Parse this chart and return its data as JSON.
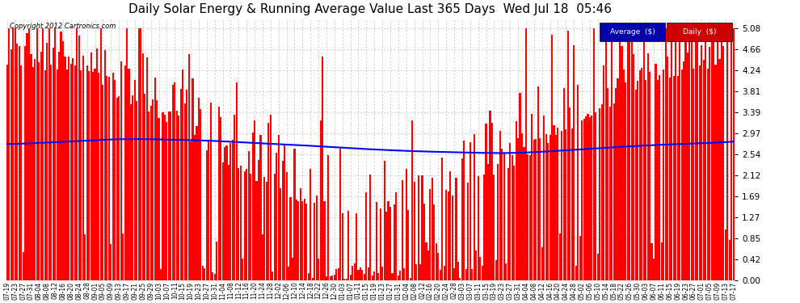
{
  "title": "Daily Solar Energy & Running Average Value Last 365 Days  Wed Jul 18  05:46",
  "copyright": "Copyright 2012 Cartronics.com",
  "legend_labels": [
    "Average  ($)",
    "Daily  ($)"
  ],
  "bar_color": "#ff0000",
  "line_color": "#0000ff",
  "background_color": "#ffffff",
  "grid_color": "#bbbbbb",
  "yticks": [
    0.0,
    0.42,
    0.85,
    1.27,
    1.69,
    2.12,
    2.54,
    2.97,
    3.39,
    3.81,
    4.24,
    4.66,
    5.08
  ],
  "ylim": [
    0,
    5.3
  ],
  "xlabel_fontsize": 5.5,
  "title_fontsize": 11,
  "ylabel_fontsize": 7.5,
  "avg_line_points": [
    2.75,
    2.78,
    2.82,
    2.85,
    2.84,
    2.82,
    2.78,
    2.72,
    2.65,
    2.6,
    2.58,
    2.57,
    2.6,
    2.65,
    2.7,
    2.74,
    2.77,
    2.8
  ],
  "avg_x_points": [
    0,
    20,
    40,
    60,
    80,
    100,
    120,
    150,
    180,
    210,
    230,
    250,
    270,
    290,
    310,
    330,
    350,
    364
  ]
}
